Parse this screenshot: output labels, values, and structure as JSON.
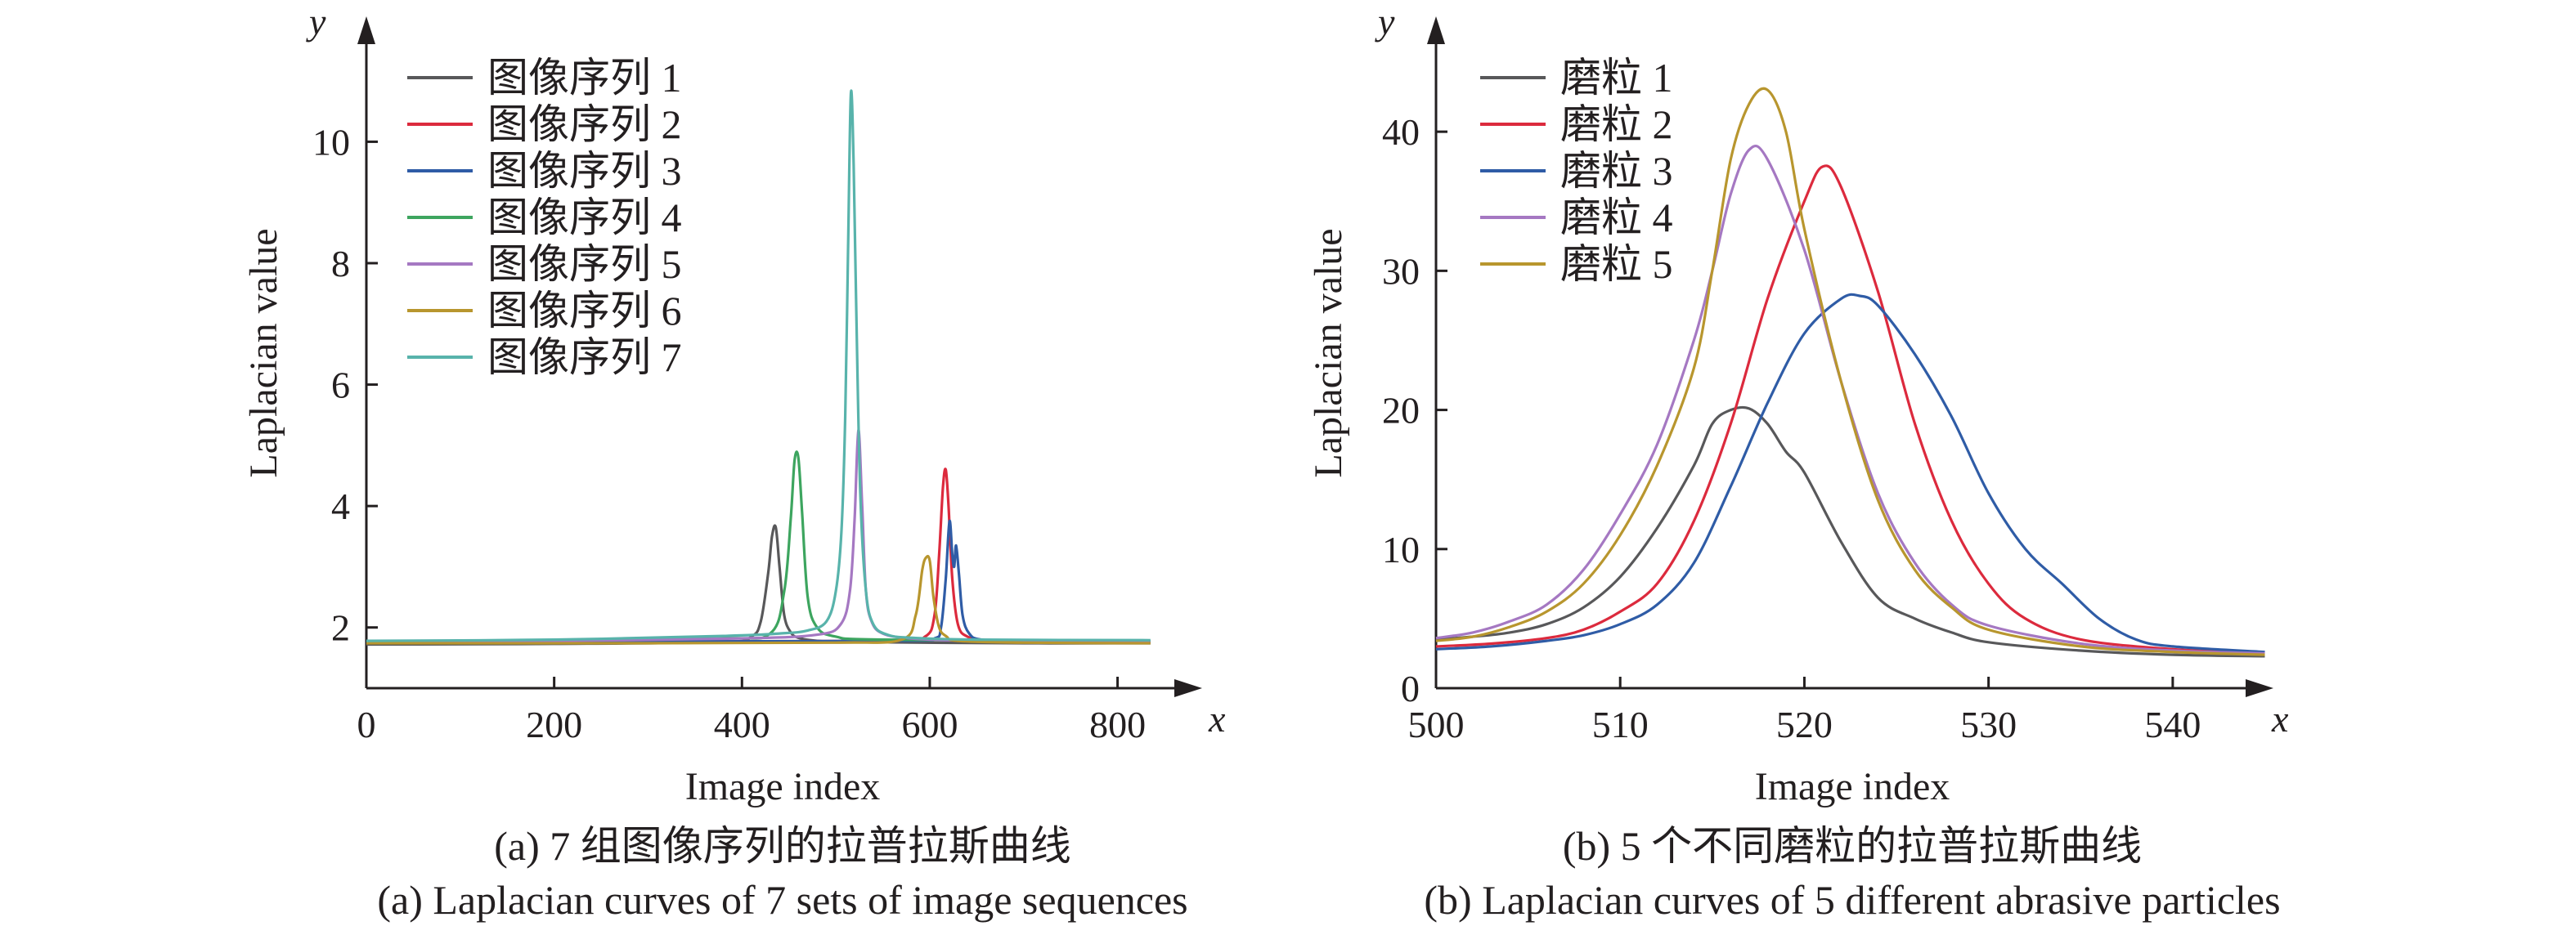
{
  "chart_data": [
    {
      "type": "line",
      "caption_zh": "(a) 7 组图像序列的拉普拉斯曲线",
      "caption_en": "(a) Laplacian curves of 7 sets of image sequences",
      "xlabel": "Image index",
      "ylabel": "Laplacian value",
      "x_axis_symbol": "x",
      "y_axis_symbol": "y",
      "xlim": [
        0,
        850
      ],
      "ylim": [
        1,
        11.5
      ],
      "xticks": [
        0,
        200,
        400,
        600,
        800
      ],
      "yticks": [
        2,
        4,
        6,
        8,
        10
      ],
      "xtick_labels": [
        "0",
        "200",
        "400",
        "600",
        "800"
      ],
      "ytick_labels": [
        "2",
        "4",
        "6",
        "8",
        "10"
      ],
      "grid": false,
      "legend_position": "top-left",
      "series": [
        {
          "name": "图像序列 1",
          "color": "#58585a",
          "x": [
            0,
            200,
            380,
            410,
            420,
            428,
            432,
            436,
            440,
            445,
            452,
            460,
            480,
            520,
            700,
            835
          ],
          "y": [
            1.72,
            1.73,
            1.76,
            1.85,
            2.1,
            2.9,
            3.5,
            3.65,
            3.0,
            2.2,
            1.92,
            1.83,
            1.78,
            1.76,
            1.74,
            1.74
          ]
        },
        {
          "name": "图像序列 2",
          "color": "#dc2a3d",
          "x": [
            0,
            300,
            560,
            595,
            605,
            610,
            614,
            617,
            620,
            624,
            630,
            640,
            660,
            700,
            835
          ],
          "y": [
            1.77,
            1.77,
            1.78,
            1.85,
            2.2,
            3.2,
            4.3,
            4.6,
            4.0,
            2.8,
            2.05,
            1.85,
            1.79,
            1.77,
            1.77
          ]
        },
        {
          "name": "图像序列 3",
          "color": "#2f5ca6",
          "x": [
            0,
            300,
            570,
            605,
            612,
            617,
            621,
            624,
            626,
            628,
            631,
            635,
            642,
            655,
            700,
            835
          ],
          "y": [
            1.77,
            1.77,
            1.78,
            1.82,
            2.0,
            2.8,
            3.75,
            3.2,
            3.0,
            3.35,
            2.9,
            2.2,
            1.9,
            1.8,
            1.77,
            1.76
          ]
        },
        {
          "name": "图像序列 4",
          "color": "#3da55f",
          "x": [
            0,
            200,
            380,
            430,
            445,
            452,
            456,
            460,
            464,
            470,
            480,
            500,
            550,
            835
          ],
          "y": [
            1.77,
            1.79,
            1.82,
            1.9,
            2.6,
            3.8,
            4.75,
            4.8,
            3.9,
            2.5,
            2.0,
            1.85,
            1.8,
            1.77
          ]
        },
        {
          "name": "图像序列 5",
          "color": "#a578c2",
          "x": [
            0,
            200,
            400,
            480,
            505,
            515,
            520,
            524,
            528,
            532,
            538,
            550,
            580,
            650,
            835
          ],
          "y": [
            1.77,
            1.78,
            1.82,
            1.88,
            2.05,
            2.6,
            3.8,
            5.25,
            4.0,
            2.6,
            2.1,
            1.9,
            1.82,
            1.78,
            1.76
          ]
        },
        {
          "name": "图像序列 6",
          "color": "#b8962e",
          "x": [
            0,
            300,
            500,
            570,
            585,
            592,
            596,
            600,
            604,
            610,
            618,
            630,
            700,
            835
          ],
          "y": [
            1.74,
            1.74,
            1.75,
            1.8,
            2.2,
            2.95,
            3.15,
            3.1,
            2.5,
            2.0,
            1.85,
            1.78,
            1.75,
            1.74
          ]
        },
        {
          "name": "图像序列 7",
          "color": "#58b3ab",
          "x": [
            0,
            200,
            380,
            440,
            470,
            490,
            500,
            506,
            510,
            513,
            516,
            519,
            522,
            526,
            532,
            540,
            555,
            580,
            650,
            835
          ],
          "y": [
            1.78,
            1.8,
            1.86,
            1.9,
            1.95,
            2.1,
            2.6,
            3.6,
            5.5,
            8.2,
            10.8,
            9.6,
            7.0,
            4.2,
            2.6,
            2.05,
            1.88,
            1.83,
            1.8,
            1.79
          ]
        }
      ]
    },
    {
      "type": "line",
      "caption_zh": "(b) 5 个不同磨粒的拉普拉斯曲线",
      "caption_en": "(b) Laplacian curves of 5 different abrasive particles",
      "xlabel": "Image index",
      "ylabel": "Laplacian value",
      "x_axis_symbol": "x",
      "y_axis_symbol": "y",
      "xlim": [
        500,
        546
      ],
      "ylim": [
        0,
        47
      ],
      "xticks": [
        500,
        510,
        520,
        530,
        540
      ],
      "yticks": [
        0,
        10,
        20,
        30,
        40
      ],
      "xtick_labels": [
        "500",
        "510",
        "520",
        "530",
        "540"
      ],
      "ytick_labels": [
        "0",
        "10",
        "20",
        "30",
        "40"
      ],
      "grid": false,
      "legend_position": "top-left",
      "series": [
        {
          "name": "磨粒 1",
          "color": "#58585a",
          "x": [
            500,
            502,
            504,
            506,
            508,
            510,
            512,
            514,
            515,
            516,
            517,
            518,
            519,
            520,
            522,
            524,
            526,
            528,
            530,
            535,
            540,
            545
          ],
          "y": [
            3.5,
            3.7,
            4.0,
            4.6,
            5.8,
            8.0,
            11.5,
            16.0,
            19.0,
            20.0,
            20.1,
            19.0,
            17.0,
            15.5,
            10.5,
            6.5,
            5.0,
            4.0,
            3.3,
            2.7,
            2.4,
            2.3
          ]
        },
        {
          "name": "磨粒 2",
          "color": "#dc2a3d",
          "x": [
            500,
            503,
            506,
            508,
            510,
            512,
            514,
            516,
            518,
            520,
            521,
            522,
            524,
            526,
            528,
            530,
            532,
            535,
            540,
            545
          ],
          "y": [
            3.0,
            3.2,
            3.6,
            4.2,
            5.5,
            7.5,
            12.0,
            19.0,
            28.0,
            35.0,
            37.5,
            36.0,
            28.5,
            19.0,
            12.0,
            7.5,
            5.0,
            3.5,
            2.8,
            2.5
          ]
        },
        {
          "name": "磨粒 3",
          "color": "#2f5ca6",
          "x": [
            500,
            503,
            506,
            508,
            510,
            512,
            514,
            516,
            518,
            520,
            522,
            523,
            524,
            526,
            528,
            530,
            532,
            534,
            536,
            538,
            540,
            545
          ],
          "y": [
            2.8,
            3.0,
            3.4,
            3.8,
            4.6,
            6.0,
            9.0,
            14.5,
            20.5,
            25.5,
            28.0,
            28.2,
            27.5,
            24.0,
            19.5,
            14.0,
            10.0,
            7.5,
            5.0,
            3.5,
            3.0,
            2.6
          ]
        },
        {
          "name": "磨粒 4",
          "color": "#a578c2",
          "x": [
            500,
            502,
            504,
            506,
            508,
            510,
            512,
            514,
            515,
            516,
            517,
            518,
            520,
            522,
            524,
            526,
            528,
            530,
            535,
            540,
            545
          ],
          "y": [
            3.6,
            4.0,
            4.8,
            6.0,
            8.5,
            12.5,
            17.5,
            25.0,
            30.0,
            35.5,
            38.7,
            38.0,
            31.5,
            22.0,
            14.0,
            9.0,
            6.0,
            4.5,
            3.2,
            2.7,
            2.5
          ]
        },
        {
          "name": "磨粒 5",
          "color": "#b8962e",
          "x": [
            500,
            502,
            504,
            506,
            508,
            510,
            512,
            514,
            515,
            516,
            517,
            518,
            519,
            520,
            522,
            524,
            526,
            528,
            530,
            535,
            540,
            545
          ],
          "y": [
            3.4,
            3.7,
            4.4,
            5.5,
            7.5,
            11.0,
            16.0,
            23.0,
            30.0,
            38.0,
            42.0,
            43.0,
            40.0,
            33.0,
            22.0,
            13.5,
            8.5,
            5.8,
            4.2,
            3.0,
            2.6,
            2.4
          ]
        }
      ]
    }
  ]
}
